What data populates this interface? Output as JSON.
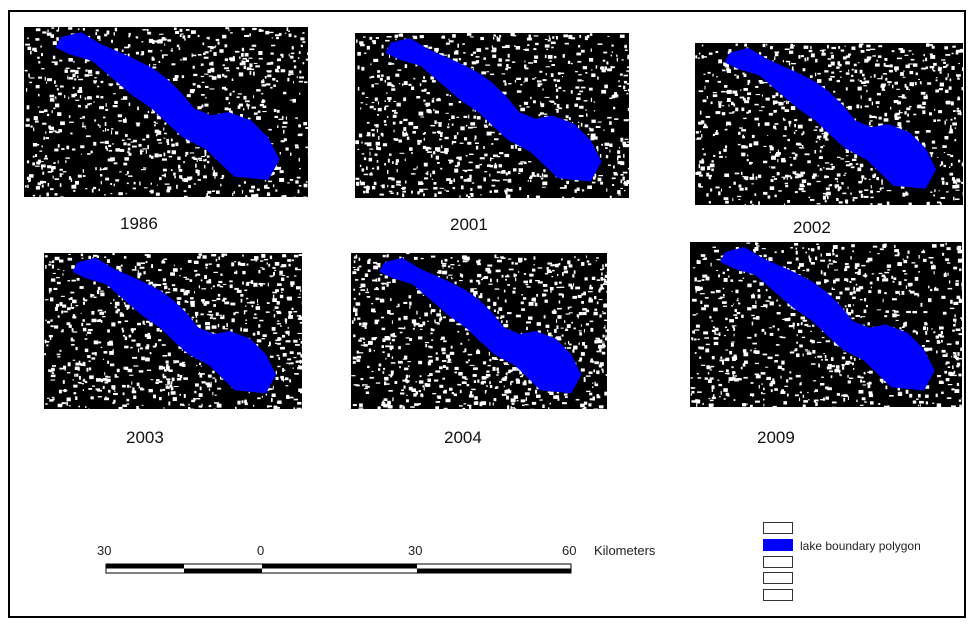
{
  "map": {
    "panels": [
      {
        "year": "1986"
      },
      {
        "year": "2001"
      },
      {
        "year": "2002"
      },
      {
        "year": "2003"
      },
      {
        "year": "2004"
      },
      {
        "year": "2009"
      }
    ],
    "scale": {
      "ticks": [
        "30",
        "0",
        "30",
        "60"
      ],
      "units": "Kilometers"
    },
    "legend": {
      "label": "lake boundary polygon",
      "colors": {
        "lake": "#0000ff",
        "land": "#000000",
        "cleared": "#ffffff"
      }
    }
  }
}
